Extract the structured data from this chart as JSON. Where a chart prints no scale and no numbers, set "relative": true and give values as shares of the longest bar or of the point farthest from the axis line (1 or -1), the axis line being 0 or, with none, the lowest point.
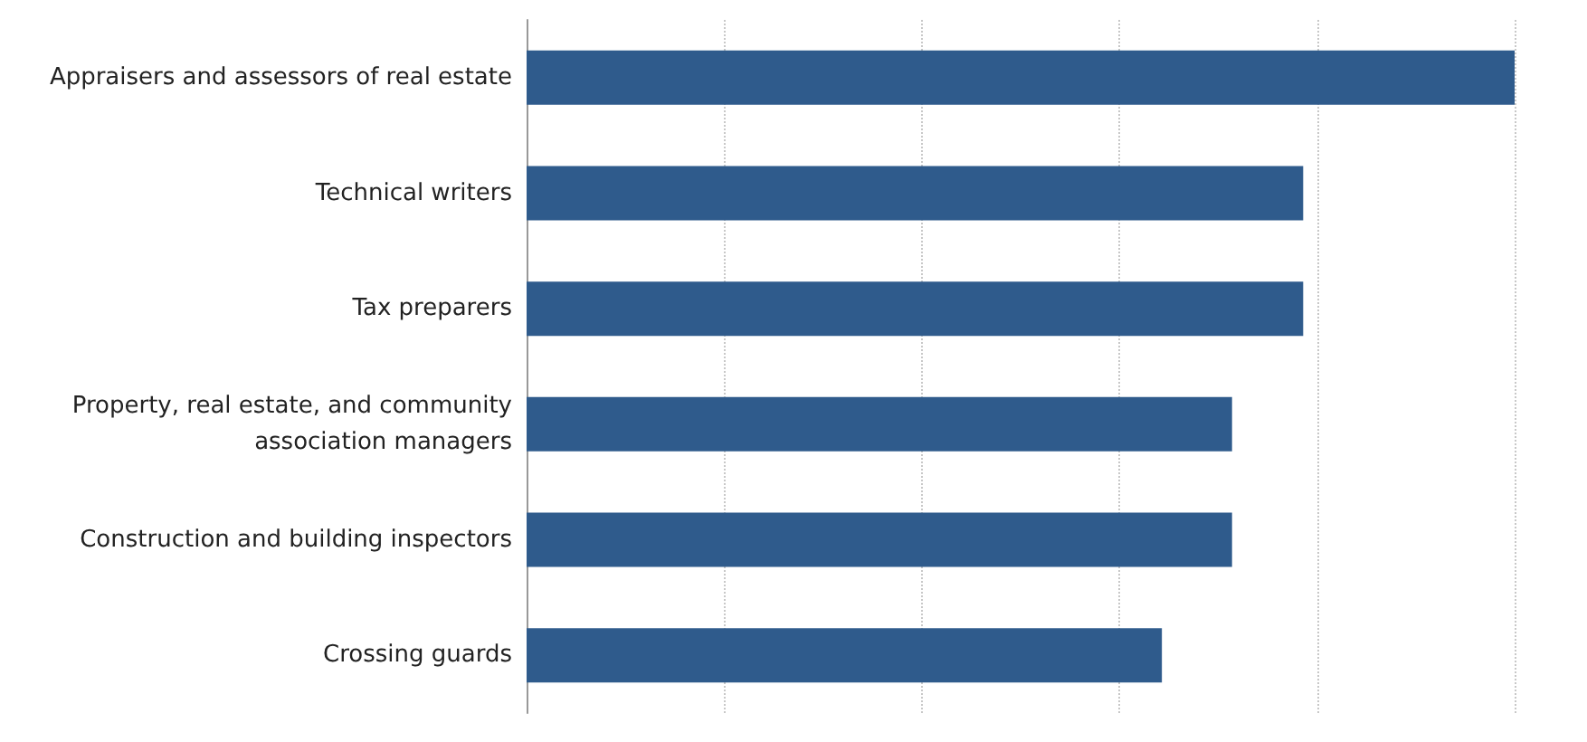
{
  "chart_data": {
    "type": "bar",
    "orientation": "horizontal",
    "relative": true,
    "grid": "x",
    "color": "#2f5b8c",
    "categories": [
      "Appraisers and assessors of real estate",
      "Technical writers",
      "Tax preparers",
      "Property, real estate, and community\nassociation managers",
      "Construction and building inspectors",
      "Crossing guards"
    ],
    "values": [
      1,
      0.786,
      0.786,
      0.714,
      0.714,
      0.643
    ]
  }
}
